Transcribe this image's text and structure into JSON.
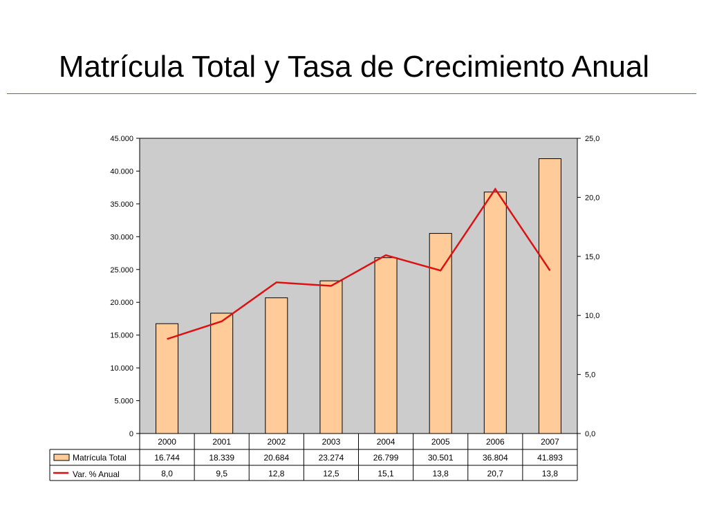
{
  "slide": {
    "title": "Matrícula Total y Tasa de Crecimiento Anual",
    "rule_color": "#e03030"
  },
  "colors": {
    "plot_bg": "#cccccc",
    "bar_fill": "#ffcc99",
    "bar_stroke": "#000000",
    "line": "#dd1111"
  },
  "chart_data": {
    "type": "bar",
    "title": "",
    "categories": [
      "2000",
      "2001",
      "2002",
      "2003",
      "2004",
      "2005",
      "2006",
      "2007"
    ],
    "series": [
      {
        "name": "Matrícula Total",
        "type": "bar",
        "axis": "left",
        "values": [
          16744,
          18339,
          20684,
          23274,
          26799,
          30501,
          36804,
          41893
        ],
        "labels": [
          "16.744",
          "18.339",
          "20.684",
          "23.274",
          "26.799",
          "30.501",
          "36.804",
          "41.893"
        ]
      },
      {
        "name": "Var. % Anual",
        "type": "line",
        "axis": "right",
        "values": [
          8.0,
          9.5,
          12.8,
          12.5,
          15.1,
          13.8,
          20.7,
          13.8
        ],
        "labels": [
          "8,0",
          "9,5",
          "12,8",
          "12,5",
          "15,1",
          "13,8",
          "20,7",
          "13,8"
        ]
      }
    ],
    "y_left": {
      "range": [
        0,
        45000
      ],
      "ticks": [
        0,
        5000,
        10000,
        15000,
        20000,
        25000,
        30000,
        35000,
        40000,
        45000
      ],
      "tick_labels": [
        "0",
        "5.000",
        "10.000",
        "15.000",
        "20.000",
        "25.000",
        "30.000",
        "35.000",
        "40.000",
        "45.000"
      ]
    },
    "y_right": {
      "range": [
        0,
        25
      ],
      "ticks": [
        0,
        5,
        10,
        15,
        20,
        25
      ],
      "tick_labels": [
        "0,0",
        "5,0",
        "10,0",
        "15,0",
        "20,0",
        "25,0"
      ]
    },
    "grid": false,
    "data_table": true
  }
}
